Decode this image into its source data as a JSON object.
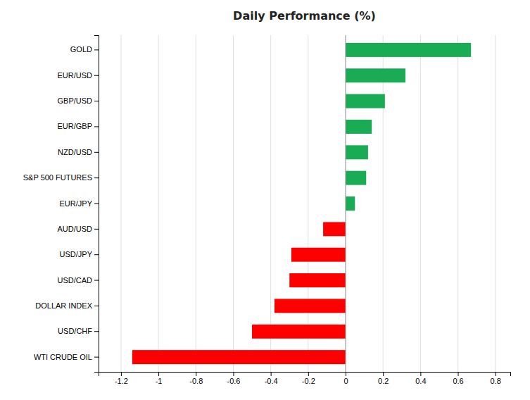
{
  "chart_data": {
    "type": "bar",
    "orientation": "horizontal",
    "title": "Daily Performance (%)",
    "categories": [
      "GOLD",
      "EUR/USD",
      "GBP/USD",
      "EUR/GBP",
      "NZD/USD",
      "S&P 500 FUTURES",
      "EUR/JPY",
      "AUD/USD",
      "USD/JPY",
      "USD/CAD",
      "DOLLAR INDEX",
      "USD/CHF",
      "WTI CRUDE OIL"
    ],
    "values": [
      0.67,
      0.32,
      0.21,
      0.14,
      0.12,
      0.11,
      0.05,
      -0.12,
      -0.29,
      -0.3,
      -0.38,
      -0.5,
      -1.14
    ],
    "colors": [
      "#1aac54",
      "#1aac54",
      "#1aac54",
      "#1aac54",
      "#1aac54",
      "#1aac54",
      "#1aac54",
      "#ff0000",
      "#ff0000",
      "#ff0000",
      "#ff0000",
      "#ff0000",
      "#ff0000"
    ],
    "xlim": [
      -1.32,
      0.88
    ],
    "xticks": [
      -1.2,
      -1.0,
      -0.8,
      -0.6,
      -0.4,
      -0.2,
      0.0,
      0.2,
      0.4,
      0.6,
      0.8
    ],
    "grid": true
  }
}
